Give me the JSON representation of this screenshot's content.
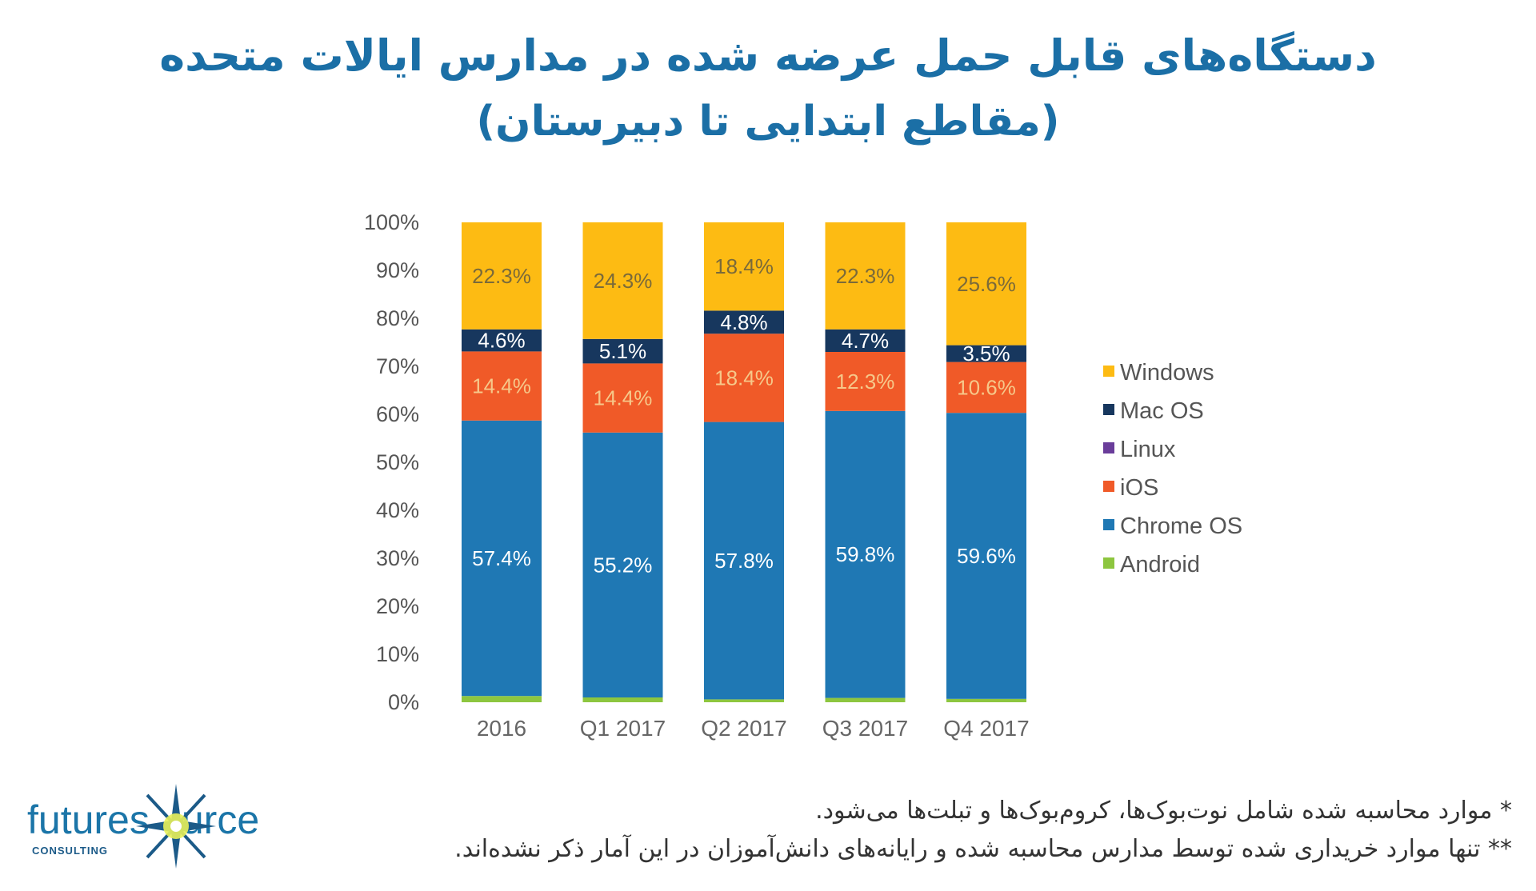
{
  "title": {
    "line1": "دستگاه‌های قابل حمل عرضه شده در مدارس ایالات متحده",
    "line2": "(مقاطع ابتدایی تا دبیرستان)"
  },
  "chart_data": {
    "type": "stacked-bar",
    "categories": [
      "2016",
      "Q1 2017",
      "Q2 2017",
      "Q3 2017",
      "Q4 2017"
    ],
    "y_ticks": [
      "0%",
      "10%",
      "20%",
      "30%",
      "40%",
      "50%",
      "60%",
      "70%",
      "80%",
      "90%",
      "100%"
    ],
    "ylim": [
      0,
      100
    ],
    "series": [
      {
        "name": "Android",
        "color": "#8dc63f",
        "values": [
          1.3,
          1.0,
          0.6,
          0.9,
          0.7
        ],
        "labels": [
          "",
          "",
          "",
          "",
          ""
        ],
        "label_color": "#ffffff"
      },
      {
        "name": "Chrome OS",
        "color": "#1f78b4",
        "values": [
          57.4,
          55.2,
          57.8,
          59.8,
          59.6
        ],
        "labels": [
          "57.4%",
          "55.2%",
          "57.8%",
          "59.8%",
          "59.6%"
        ],
        "label_color": "#ffffff"
      },
      {
        "name": "iOS",
        "color": "#f05a28",
        "values": [
          14.4,
          14.4,
          18.4,
          12.3,
          10.6
        ],
        "labels": [
          "14.4%",
          "14.4%",
          "18.4%",
          "12.3%",
          "10.6%"
        ],
        "label_color": "#f6c88a"
      },
      {
        "name": "Linux",
        "color": "#6a3d9a",
        "values": [
          0,
          0,
          0,
          0,
          0
        ],
        "labels": [
          "",
          "",
          "",
          "",
          ""
        ],
        "label_color": "#ffffff"
      },
      {
        "name": "Mac OS",
        "color": "#17375e",
        "values": [
          4.6,
          5.1,
          4.8,
          4.7,
          3.5
        ],
        "labels": [
          "4.6%",
          "5.1%",
          "4.8%",
          "4.7%",
          "3.5%"
        ],
        "label_color": "#ffffff"
      },
      {
        "name": "Windows",
        "color": "#fdbb13",
        "values": [
          22.3,
          24.3,
          18.4,
          22.3,
          25.6
        ],
        "labels": [
          "22.3%",
          "24.3%",
          "18.4%",
          "22.3%",
          "25.6%"
        ],
        "label_color": "#7a6a3a"
      }
    ],
    "legend": [
      "Windows",
      "Mac OS",
      "Linux",
      "iOS",
      "Chrome OS",
      "Android"
    ],
    "legend_position": "right"
  },
  "notes": {
    "line1": "* موارد محاسبه شده شامل نوت‌بوک‌ها، کروم‌بوک‌ها و تبلت‌ها می‌شود.",
    "line2": "** تنها موارد خریداری شده توسط مدارس محاسبه شده و رایانه‌های دانش‌آموزان در این آمار ذکر نشده‌اند."
  },
  "logo": {
    "text_before": "futures",
    "text_after": "urce",
    "subtitle": "CONSULTING"
  }
}
